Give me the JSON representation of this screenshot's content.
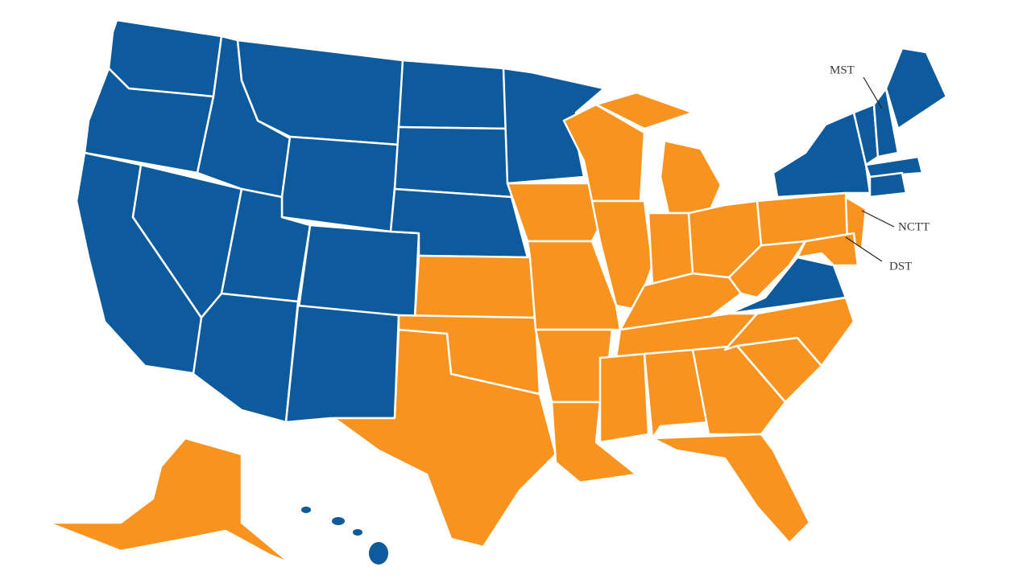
{
  "annotations": [
    "MST",
    "NCTT",
    "DST"
  ]
}
